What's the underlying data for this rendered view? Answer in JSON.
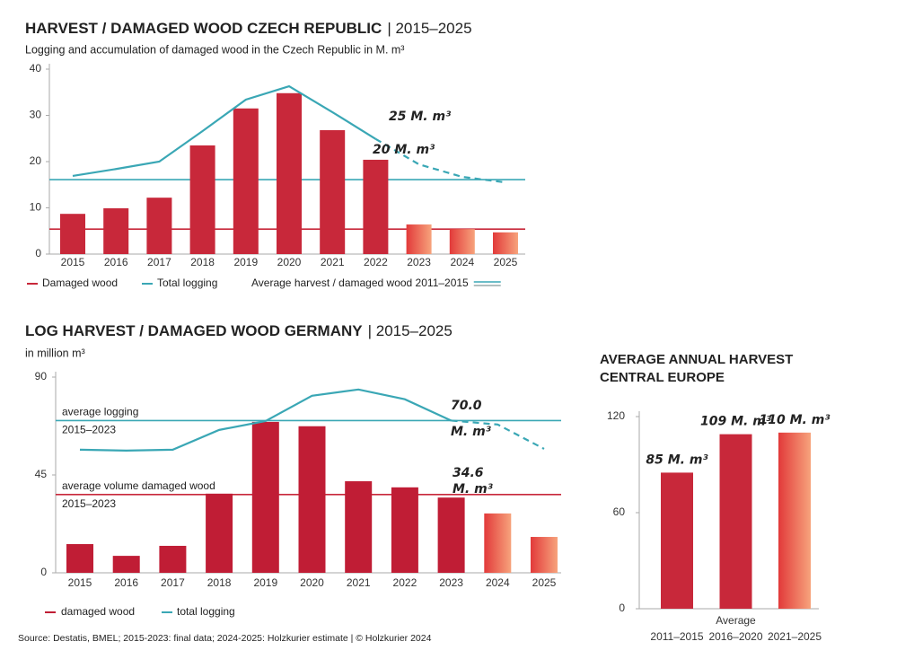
{
  "chart_data": [
    {
      "type": "bar",
      "title": "HARVEST / DAMAGED WOOD CZECH REPUBLIC",
      "title_period": "| 2015–2025",
      "subtitle": "Logging and accumulation of damaged wood in the Czech Republic in M. m³",
      "categories": [
        "2015",
        "2016",
        "2017",
        "2018",
        "2019",
        "2020",
        "2021",
        "2022",
        "2023",
        "2024",
        "2025"
      ],
      "series": [
        {
          "name": "Damaged wood",
          "type": "bar",
          "color": "#c8283a",
          "values": [
            8.7,
            9.9,
            12.2,
            23.5,
            31.5,
            34.8,
            26.8,
            20.4,
            6.4,
            5.4,
            4.7
          ]
        },
        {
          "name": "Total logging",
          "type": "line",
          "color": "#3aa7b5",
          "values": [
            16.9,
            18.4,
            20.0,
            26.6,
            33.4,
            36.3,
            30.7,
            24.9,
            19.4,
            16.7,
            15.5
          ]
        }
      ],
      "estimate_from": "2023",
      "reference_lines": [
        {
          "value": 16.1,
          "color": "#3aa7b5"
        },
        {
          "value": 5.4,
          "color": "#c8283a"
        }
      ],
      "reference_legend": "Average harvest / damaged wood 2011–2015",
      "annotations": [
        "25 M. m³",
        "20 M. m³"
      ],
      "ylim": [
        0,
        40
      ],
      "yticks": [
        0,
        10,
        20,
        30,
        40
      ]
    },
    {
      "type": "bar",
      "title": "LOG HARVEST / DAMAGED WOOD GERMANY",
      "title_period": "| 2015–2025",
      "subtitle": "in million m³",
      "categories": [
        "2015",
        "2016",
        "2017",
        "2018",
        "2019",
        "2020",
        "2021",
        "2022",
        "2023",
        "2024",
        "2025"
      ],
      "series": [
        {
          "name": "damaged wood",
          "type": "bar",
          "color": "#c01d35",
          "values": [
            13.2,
            7.8,
            12.4,
            36.4,
            69.4,
            67.4,
            42.1,
            39.3,
            34.6,
            27.3,
            16.5
          ]
        },
        {
          "name": "total logging",
          "type": "line",
          "color": "#3aa7b5",
          "values": [
            56.6,
            56.2,
            56.6,
            65.7,
            69.8,
            81.4,
            84.3,
            79.8,
            70.0,
            68.2,
            57.0
          ]
        }
      ],
      "estimate_from": "2024",
      "reference_lines": [
        {
          "value": 70.0,
          "color": "#3aa7b5",
          "label": "average logging",
          "period": "2015–2023"
        },
        {
          "value": 36.0,
          "color": "#c8283a",
          "label": "average volume damaged wood",
          "period": "2015–2023"
        }
      ],
      "annotations": [
        "70.0",
        "M. m³",
        "34.6",
        "M. m³"
      ],
      "ylim": [
        0,
        90
      ],
      "yticks": [
        0,
        45,
        90
      ]
    },
    {
      "type": "bar",
      "title": [
        "AVERAGE ANNUAL HARVEST",
        "CENTRAL EUROPE"
      ],
      "x_label": "Average",
      "categories": [
        "2011–2015",
        "2016–2020",
        "2021–2025"
      ],
      "values": [
        85,
        109,
        110
      ],
      "value_labels": [
        "85 M. m³",
        "109 M. m³",
        "110 M. m³"
      ],
      "color": "#c8283a",
      "estimate_from": "2021–2025",
      "ylim": [
        0,
        120
      ],
      "yticks": [
        0,
        60,
        120
      ]
    }
  ],
  "source": "Source: Destatis, BMEL; 2015-2023: final data; 2024-2025: Holzkurier estimate | © Holzkurier 2024"
}
